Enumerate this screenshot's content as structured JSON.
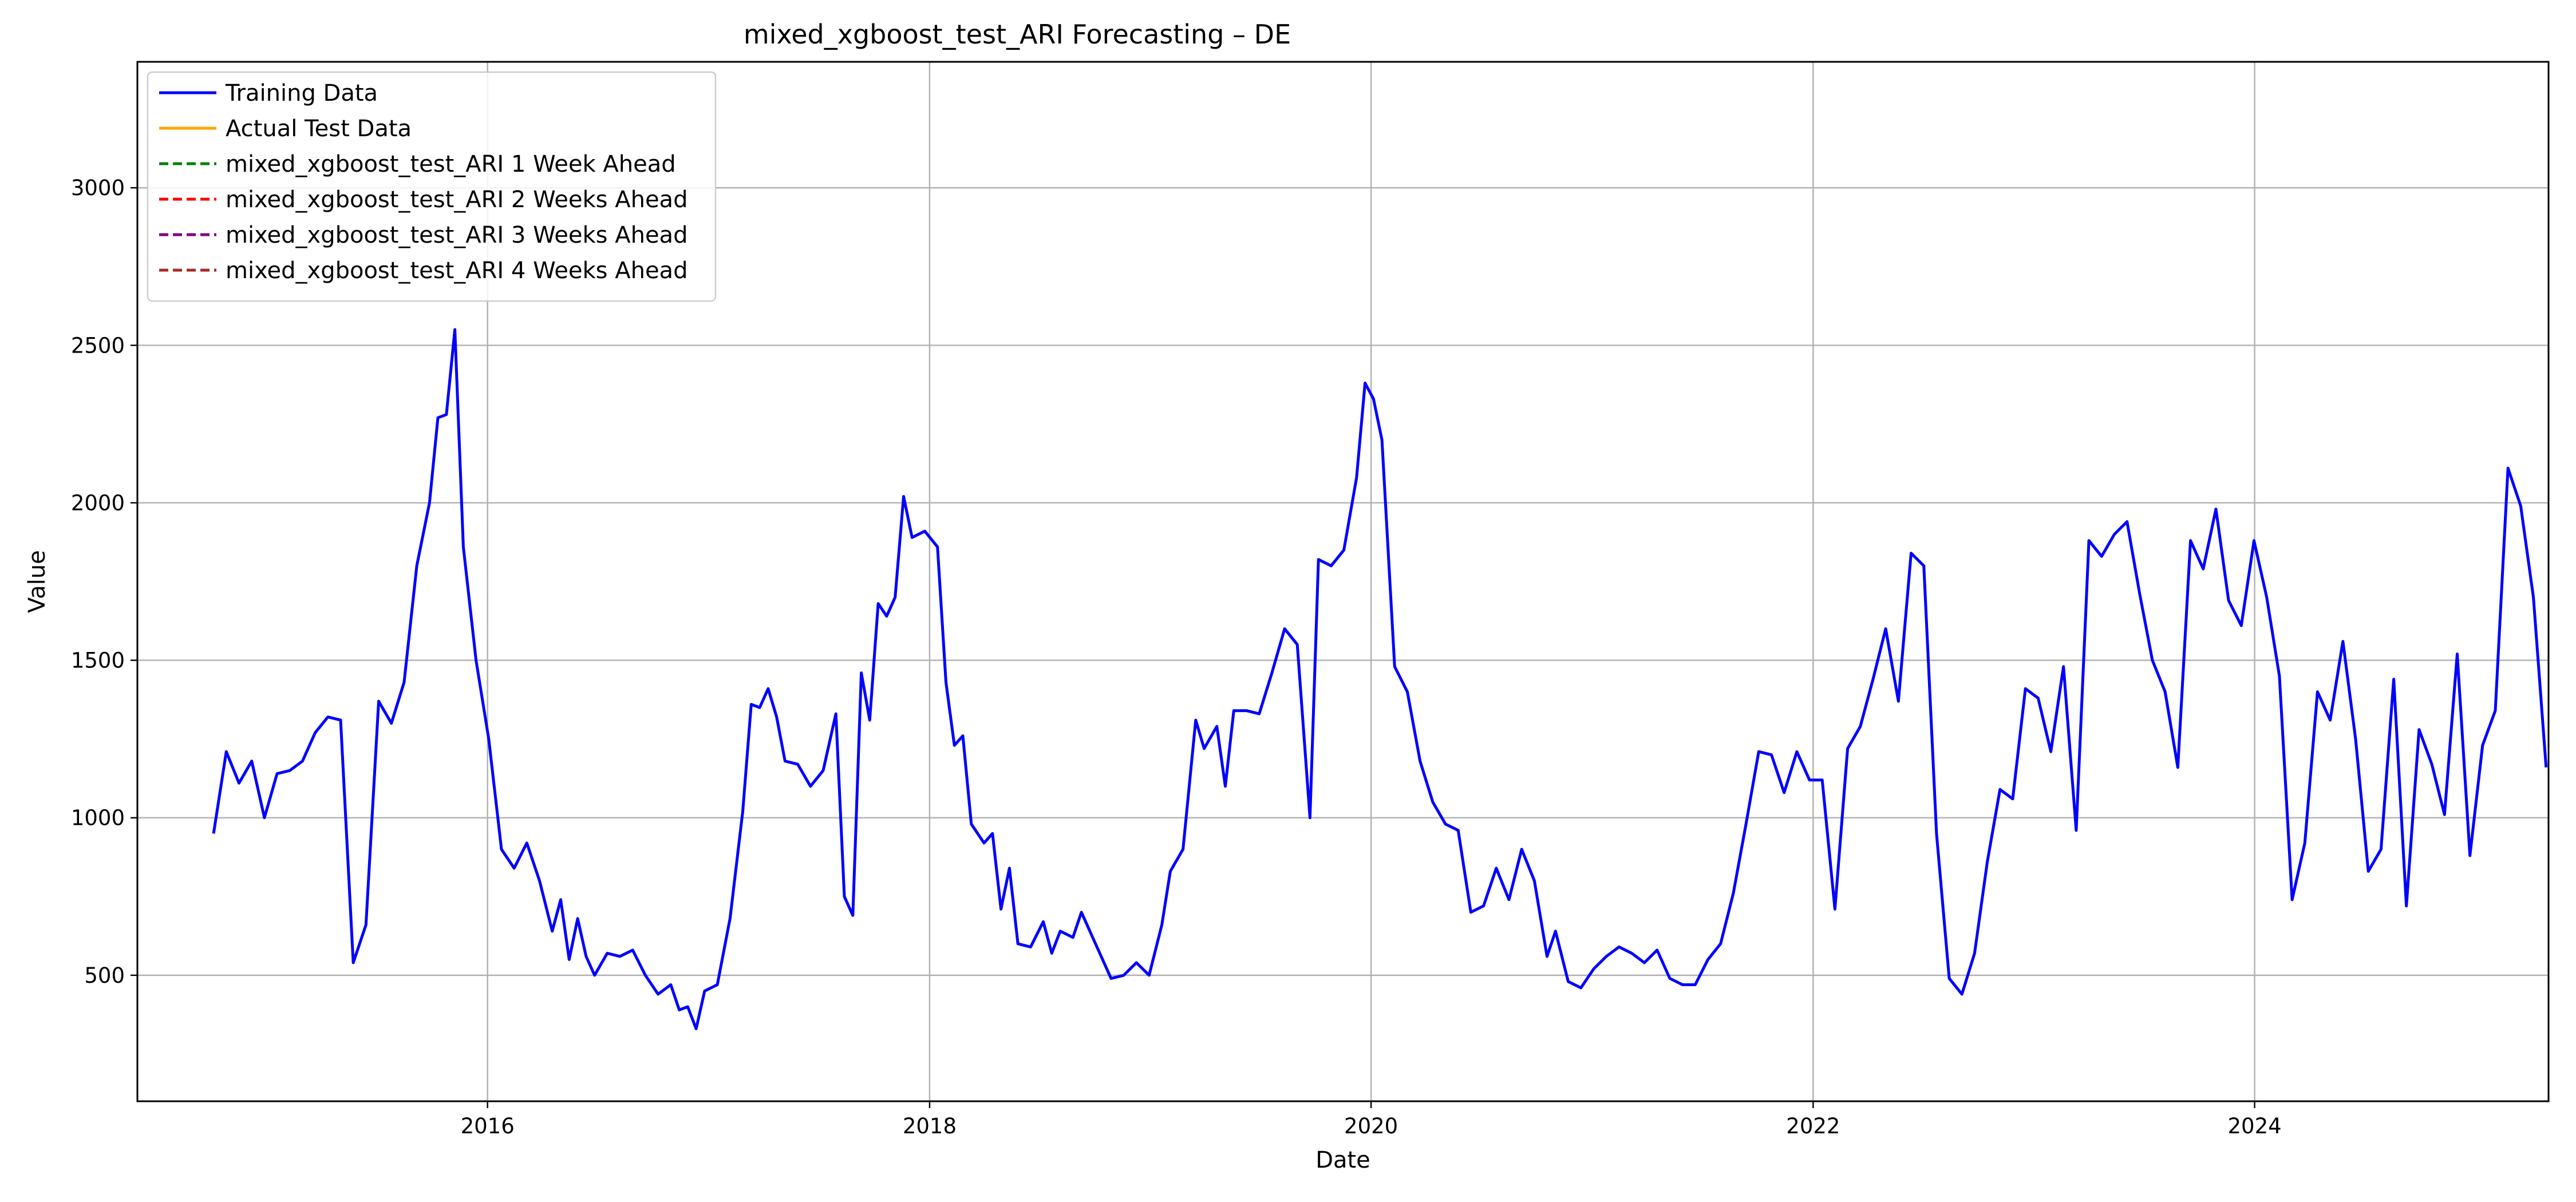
{
  "chart_data": {
    "type": "line",
    "title": "mixed_xgboost_test_ARI Forecasting – DE",
    "xlabel": "Date",
    "ylabel": "Value",
    "xlim": [
      "2014-06-01",
      "2025-05-01"
    ],
    "ylim": [
      100,
      3400
    ],
    "x_ticks": [
      "2016-01-01",
      "2018-01-01",
      "2020-01-01",
      "2022-01-01",
      "2024-01-01"
    ],
    "x_tick_labels": [
      "2016",
      "2018",
      "2020",
      "2022",
      "2024"
    ],
    "y_ticks": [
      500,
      1000,
      1500,
      2000,
      2500,
      3000
    ],
    "grid": true,
    "legend_position": "top-left",
    "series": [
      {
        "name": "Training Data",
        "color": "#0000ff",
        "dash": "solid",
        "points": [
          [
            "2014-10-05",
            950
          ],
          [
            "2014-10-26",
            1210
          ],
          [
            "2014-11-16",
            1110
          ],
          [
            "2014-12-07",
            1180
          ],
          [
            "2014-12-28",
            1000
          ],
          [
            "2015-01-18",
            1140
          ],
          [
            "2015-02-08",
            1150
          ],
          [
            "2015-03-01",
            1180
          ],
          [
            "2015-03-22",
            1270
          ],
          [
            "2015-04-12",
            1320
          ],
          [
            "2015-05-03",
            1310
          ],
          [
            "2015-05-24",
            540
          ],
          [
            "2015-06-14",
            660
          ],
          [
            "2015-07-05",
            1370
          ],
          [
            "2015-07-26",
            1300
          ],
          [
            "2015-08-16",
            1430
          ],
          [
            "2015-09-06",
            1800
          ],
          [
            "2015-09-27",
            2000
          ],
          [
            "2015-10-11",
            2270
          ],
          [
            "2015-10-25",
            2280
          ],
          [
            "2015-11-08",
            2550
          ],
          [
            "2015-11-22",
            1860
          ],
          [
            "2015-12-13",
            1500
          ],
          [
            "2016-01-03",
            1250
          ],
          [
            "2016-01-24",
            900
          ],
          [
            "2016-02-14",
            840
          ],
          [
            "2016-03-06",
            920
          ],
          [
            "2016-03-27",
            800
          ],
          [
            "2016-04-17",
            640
          ],
          [
            "2016-05-01",
            740
          ],
          [
            "2016-05-15",
            550
          ],
          [
            "2016-05-29",
            680
          ],
          [
            "2016-06-12",
            560
          ],
          [
            "2016-06-26",
            500
          ],
          [
            "2016-07-17",
            570
          ],
          [
            "2016-08-07",
            560
          ],
          [
            "2016-08-28",
            580
          ],
          [
            "2016-09-18",
            500
          ],
          [
            "2016-10-09",
            440
          ],
          [
            "2016-10-30",
            470
          ],
          [
            "2016-11-13",
            390
          ],
          [
            "2016-11-27",
            400
          ],
          [
            "2016-12-11",
            330
          ],
          [
            "2016-12-25",
            450
          ],
          [
            "2017-01-15",
            470
          ],
          [
            "2017-02-05",
            680
          ],
          [
            "2017-02-26",
            1020
          ],
          [
            "2017-03-12",
            1360
          ],
          [
            "2017-03-26",
            1350
          ],
          [
            "2017-04-09",
            1410
          ],
          [
            "2017-04-23",
            1320
          ],
          [
            "2017-05-07",
            1180
          ],
          [
            "2017-05-28",
            1170
          ],
          [
            "2017-06-18",
            1100
          ],
          [
            "2017-07-09",
            1150
          ],
          [
            "2017-07-30",
            1330
          ],
          [
            "2017-08-13",
            750
          ],
          [
            "2017-08-27",
            690
          ],
          [
            "2017-09-10",
            1460
          ],
          [
            "2017-09-24",
            1310
          ],
          [
            "2017-10-08",
            1680
          ],
          [
            "2017-10-22",
            1640
          ],
          [
            "2017-11-05",
            1700
          ],
          [
            "2017-11-19",
            2020
          ],
          [
            "2017-12-03",
            1890
          ],
          [
            "2017-12-24",
            1910
          ],
          [
            "2018-01-14",
            1860
          ],
          [
            "2018-01-28",
            1430
          ],
          [
            "2018-02-11",
            1230
          ],
          [
            "2018-02-25",
            1260
          ],
          [
            "2018-03-11",
            980
          ],
          [
            "2018-04-01",
            920
          ],
          [
            "2018-04-15",
            950
          ],
          [
            "2018-04-29",
            710
          ],
          [
            "2018-05-13",
            840
          ],
          [
            "2018-05-27",
            600
          ],
          [
            "2018-06-17",
            590
          ],
          [
            "2018-07-08",
            670
          ],
          [
            "2018-07-22",
            570
          ],
          [
            "2018-08-05",
            640
          ],
          [
            "2018-08-26",
            620
          ],
          [
            "2018-09-09",
            700
          ],
          [
            "2018-10-07",
            580
          ],
          [
            "2018-10-28",
            490
          ],
          [
            "2018-11-18",
            500
          ],
          [
            "2018-12-09",
            540
          ],
          [
            "2018-12-30",
            500
          ],
          [
            "2019-01-20",
            660
          ],
          [
            "2019-02-03",
            830
          ],
          [
            "2019-02-24",
            900
          ],
          [
            "2019-03-17",
            1310
          ],
          [
            "2019-03-31",
            1220
          ],
          [
            "2019-04-21",
            1290
          ],
          [
            "2019-05-05",
            1100
          ],
          [
            "2019-05-19",
            1340
          ],
          [
            "2019-06-09",
            1340
          ],
          [
            "2019-06-30",
            1330
          ],
          [
            "2019-07-21",
            1460
          ],
          [
            "2019-08-11",
            1600
          ],
          [
            "2019-09-01",
            1550
          ],
          [
            "2019-09-22",
            1000
          ],
          [
            "2019-10-06",
            1820
          ],
          [
            "2019-10-27",
            1800
          ],
          [
            "2019-11-17",
            1850
          ],
          [
            "2019-12-08",
            2080
          ],
          [
            "2019-12-22",
            2380
          ],
          [
            "2020-01-05",
            2330
          ],
          [
            "2020-01-19",
            2200
          ],
          [
            "2020-02-09",
            1480
          ],
          [
            "2020-03-01",
            1400
          ],
          [
            "2020-03-22",
            1180
          ],
          [
            "2020-04-12",
            1050
          ],
          [
            "2020-05-03",
            980
          ],
          [
            "2020-05-24",
            960
          ],
          [
            "2020-06-14",
            700
          ],
          [
            "2020-07-05",
            720
          ],
          [
            "2020-07-26",
            840
          ],
          [
            "2020-08-16",
            740
          ],
          [
            "2020-09-06",
            900
          ],
          [
            "2020-09-27",
            800
          ],
          [
            "2020-10-18",
            560
          ],
          [
            "2020-11-01",
            640
          ],
          [
            "2020-11-22",
            480
          ],
          [
            "2020-12-13",
            460
          ],
          [
            "2021-01-03",
            520
          ],
          [
            "2021-01-24",
            560
          ],
          [
            "2021-02-14",
            590
          ],
          [
            "2021-03-07",
            570
          ],
          [
            "2021-03-28",
            540
          ],
          [
            "2021-04-18",
            580
          ],
          [
            "2021-05-09",
            490
          ],
          [
            "2021-05-30",
            470
          ],
          [
            "2021-06-20",
            470
          ],
          [
            "2021-07-11",
            550
          ],
          [
            "2021-08-01",
            600
          ],
          [
            "2021-08-22",
            760
          ],
          [
            "2021-09-12",
            980
          ],
          [
            "2021-10-03",
            1210
          ],
          [
            "2021-10-24",
            1200
          ],
          [
            "2021-11-14",
            1080
          ],
          [
            "2021-12-05",
            1210
          ],
          [
            "2021-12-26",
            1120
          ],
          [
            "2022-01-16",
            1120
          ],
          [
            "2022-02-06",
            710
          ],
          [
            "2022-02-27",
            1220
          ],
          [
            "2022-03-20",
            1290
          ],
          [
            "2022-04-10",
            1440
          ],
          [
            "2022-05-01",
            1600
          ],
          [
            "2022-05-22",
            1370
          ],
          [
            "2022-06-12",
            1840
          ],
          [
            "2022-07-03",
            1800
          ],
          [
            "2022-07-24",
            950
          ],
          [
            "2022-08-14",
            490
          ],
          [
            "2022-09-04",
            440
          ],
          [
            "2022-09-25",
            570
          ],
          [
            "2022-10-16",
            860
          ],
          [
            "2022-11-06",
            1090
          ],
          [
            "2022-11-27",
            1060
          ],
          [
            "2022-12-18",
            1410
          ],
          [
            "2023-01-08",
            1380
          ],
          [
            "2023-01-29",
            1210
          ],
          [
            "2023-02-19",
            1480
          ],
          [
            "2023-03-12",
            960
          ],
          [
            "2023-04-02",
            1880
          ],
          [
            "2023-04-23",
            1830
          ],
          [
            "2023-05-14",
            1900
          ],
          [
            "2023-06-04",
            1940
          ],
          [
            "2023-06-25",
            1710
          ],
          [
            "2023-07-16",
            1500
          ],
          [
            "2023-08-06",
            1400
          ],
          [
            "2023-08-27",
            1160
          ],
          [
            "2023-09-17",
            1880
          ],
          [
            "2023-10-08",
            1790
          ],
          [
            "2023-10-29",
            1980
          ],
          [
            "2023-11-19",
            1690
          ],
          [
            "2023-12-10",
            1610
          ],
          [
            "2023-12-31",
            1880
          ],
          [
            "2024-01-21",
            1700
          ],
          [
            "2024-02-11",
            1450
          ],
          [
            "2024-03-03",
            740
          ],
          [
            "2024-03-24",
            920
          ],
          [
            "2024-04-14",
            1400
          ],
          [
            "2024-05-05",
            1310
          ],
          [
            "2024-05-26",
            1560
          ],
          [
            "2024-06-16",
            1250
          ],
          [
            "2024-07-07",
            830
          ],
          [
            "2024-07-28",
            900
          ],
          [
            "2024-08-18",
            1440
          ],
          [
            "2024-09-08",
            720
          ],
          [
            "2024-09-29",
            1280
          ],
          [
            "2024-10-20",
            1170
          ],
          [
            "2024-11-10",
            1010
          ],
          [
            "2024-12-01",
            1520
          ],
          [
            "2024-12-22",
            880
          ],
          [
            "2025-01-12",
            1230
          ],
          [
            "2025-02-02",
            1340
          ],
          [
            "2025-02-23",
            2110
          ],
          [
            "2025-03-16",
            1990
          ],
          [
            "2025-04-06",
            1700
          ],
          [
            "2025-04-27",
            1160
          ]
        ]
      },
      {
        "name": "Actual Test Data",
        "color": "#ffa500",
        "dash": "solid",
        "points": []
      },
      {
        "name": "mixed_xgboost_test_ARI 1 Week Ahead",
        "color": "#008000",
        "dash": "dashed",
        "points": []
      },
      {
        "name": "mixed_xgboost_test_ARI 2 Weeks Ahead",
        "color": "#ff0000",
        "dash": "dashed",
        "points": []
      },
      {
        "name": "mixed_xgboost_test_ARI 3 Weeks Ahead",
        "color": "#800080",
        "dash": "dashed",
        "points": []
      },
      {
        "name": "mixed_xgboost_test_ARI 4 Weeks Ahead",
        "color": "#a52a2a",
        "dash": "dashed",
        "points": []
      }
    ]
  }
}
